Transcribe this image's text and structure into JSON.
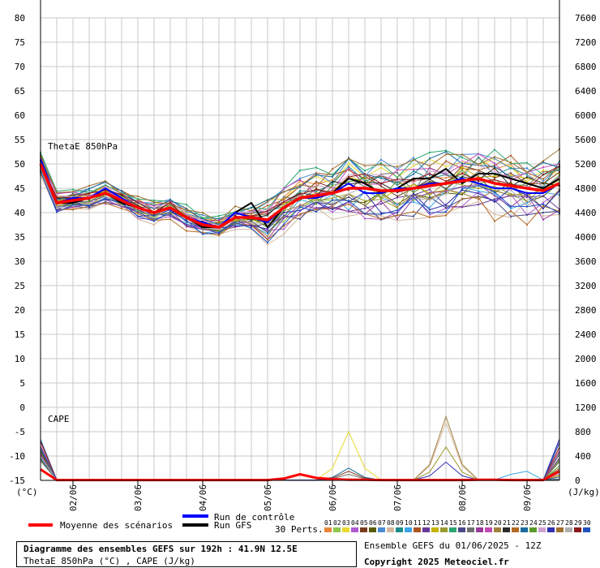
{
  "chart_data": {
    "type": "line",
    "panels": [
      "ThetaE 850hPa",
      "CAPE"
    ],
    "left_axis": {
      "unit_label": "(°C)",
      "min": -15,
      "max": 80,
      "ticks": [
        -15,
        -10,
        -5,
        0,
        5,
        10,
        15,
        20,
        25,
        30,
        35,
        40,
        45,
        50,
        55,
        60,
        65,
        70,
        75,
        80
      ]
    },
    "right_axis": {
      "unit_label": "(J/kg)",
      "min": 0,
      "max": 7600,
      "ticks": [
        0,
        400,
        800,
        1200,
        1600,
        2000,
        2400,
        2800,
        3200,
        3600,
        4000,
        4400,
        4800,
        5200,
        5600,
        6000,
        6400,
        6800,
        7200,
        7600
      ]
    },
    "x_axis": {
      "min_hours": 0,
      "max_hours": 192,
      "tick_labels": [
        "02/06",
        "03/06",
        "04/06",
        "05/06",
        "06/06",
        "07/06",
        "08/06",
        "09/06"
      ]
    },
    "grid": true,
    "mean_thetae": {
      "name": "Moyenne des scénarios",
      "color": "#ff0000",
      "x": [
        0,
        6,
        12,
        18,
        24,
        30,
        36,
        42,
        48,
        54,
        60,
        66,
        72,
        78,
        84,
        90,
        96,
        102,
        108,
        114,
        120,
        126,
        132,
        138,
        144,
        150,
        156,
        162,
        168,
        174,
        180,
        186,
        192
      ],
      "y": [
        50,
        42,
        42.5,
        43,
        44,
        42.5,
        41,
        40,
        41,
        39,
        37.5,
        37,
        39,
        39,
        38.5,
        41,
        43,
        43.5,
        44,
        45,
        45,
        44.5,
        44.5,
        45,
        45.5,
        46,
        46.5,
        47,
        46,
        45.5,
        45,
        44.5,
        46
      ]
    },
    "control_thetae": {
      "name": "Run de contrôle",
      "color": "#0000ff",
      "x": [
        0,
        6,
        12,
        18,
        24,
        30,
        36,
        42,
        48,
        54,
        60,
        66,
        72,
        78,
        84,
        90,
        96,
        102,
        108,
        114,
        120,
        126,
        132,
        138,
        144,
        150,
        156,
        162,
        168,
        174,
        180,
        186,
        192
      ],
      "y": [
        51,
        42,
        43,
        43,
        45,
        43,
        41,
        40,
        41,
        39,
        38,
        37,
        40,
        39,
        38,
        41,
        43,
        43,
        44,
        46,
        44,
        44,
        45,
        45,
        46,
        46,
        47,
        46,
        45,
        45,
        44,
        44,
        46
      ]
    },
    "gfs_thetae": {
      "name": "Run GFS",
      "color": "#000000",
      "x": [
        0,
        6,
        12,
        18,
        24,
        30,
        36,
        42,
        48,
        54,
        60,
        66,
        72,
        78,
        84,
        90,
        96,
        102,
        108,
        114,
        120,
        126,
        132,
        138,
        144,
        150,
        156,
        162,
        168,
        174,
        180,
        186,
        192
      ],
      "y": [
        50,
        42,
        42,
        43,
        44,
        42,
        41,
        40,
        41,
        39,
        37,
        37,
        40,
        42,
        37,
        41,
        43,
        43,
        44,
        47,
        46,
        44,
        45,
        47,
        47,
        49,
        46,
        48,
        48,
        47,
        46,
        45,
        47
      ]
    },
    "mean_cape": {
      "name": "Moyenne des scénarios",
      "x": [
        0,
        6,
        12,
        18,
        24,
        30,
        36,
        42,
        48,
        54,
        60,
        66,
        72,
        78,
        84,
        90,
        96,
        102,
        108,
        114,
        120,
        126,
        132,
        138,
        144,
        150,
        156,
        162,
        168,
        174,
        180,
        186,
        192
      ],
      "y": [
        180,
        5,
        5,
        5,
        5,
        5,
        5,
        5,
        5,
        5,
        5,
        5,
        5,
        5,
        5,
        30,
        100,
        40,
        20,
        10,
        10,
        5,
        5,
        5,
        5,
        5,
        5,
        10,
        10,
        5,
        5,
        5,
        150
      ]
    },
    "members_thetae_offsets": [
      1.5,
      -1.2,
      2.4,
      -2.8,
      0.8,
      -0.5,
      3.1,
      -3.4,
      1.9,
      -1.8,
      2.7,
      -2.2,
      0.3,
      -0.9,
      3.6,
      -3.0,
      1.1,
      -2.5,
      2.0,
      -1.4,
      0.6,
      -3.8,
      2.9,
      -0.2,
      1.6,
      -2.0,
      3.3,
      -1.0,
      0.9,
      -2.7
    ],
    "members_cape_peaks": [
      0,
      0,
      800,
      0,
      150,
      0,
      0,
      950,
      0,
      200,
      0,
      0,
      0,
      550,
      0,
      0,
      100,
      0,
      0,
      1050,
      0,
      0,
      200,
      0,
      0,
      300,
      0,
      0,
      0,
      0
    ],
    "members_colors": [
      "#e8853a",
      "#8ec74c",
      "#e8d830",
      "#b05ad0",
      "#7a3b1e",
      "#5a5a00",
      "#4a8cd4",
      "#d4b8a0",
      "#1e8a8a",
      "#3aa6e8",
      "#aa5522",
      "#6a3a9a",
      "#c8b400",
      "#9a9a30",
      "#2aa86e",
      "#4a4a8a",
      "#707070",
      "#9a3a9a",
      "#c04ab4",
      "#a08040",
      "#2a2a2a",
      "#b46a22",
      "#1a6a9a",
      "#5a9a2a",
      "#d0a0d0",
      "#3030b0",
      "#a07030",
      "#b0b0b0",
      "#8a1a1a",
      "#2050c0"
    ],
    "panel_labels": {
      "thetae": "ThetaE 850hPa",
      "cape": "CAPE"
    }
  },
  "legend": {
    "mean_label": "Moyenne des scénarios",
    "control_label": "Run de contrôle",
    "gfs_label": "Run GFS",
    "perts_label": "30 Perts.",
    "pert_numbers": [
      "01",
      "02",
      "03",
      "04",
      "05",
      "06",
      "07",
      "08",
      "09",
      "10",
      "11",
      "12",
      "13",
      "14",
      "15",
      "16",
      "17",
      "18",
      "19",
      "20",
      "21",
      "22",
      "23",
      "24",
      "25",
      "26",
      "27",
      "28",
      "29",
      "30"
    ]
  },
  "footer": {
    "title": "Diagramme des ensembles GEFS sur 192h : 41.9N 12.5E",
    "subtitle": "ThetaE 850hPa (°C) , CAPE (J/kg)",
    "run_info": "Ensemble GEFS du 01/06/2025 - 12Z",
    "copyright": "Copyright 2025 Meteociel.fr"
  },
  "colors": {
    "mean": "#ff0000",
    "control": "#0000ff",
    "gfs": "#000000",
    "grid": "#c8c8c8"
  }
}
